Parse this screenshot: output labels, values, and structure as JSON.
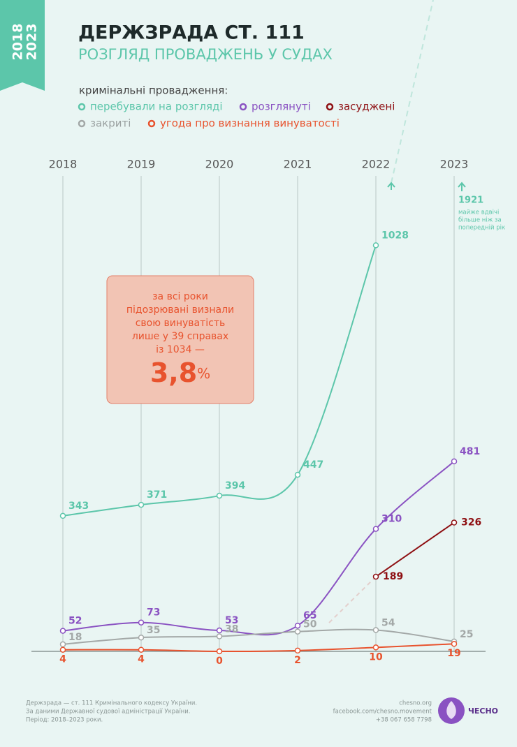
{
  "badge": {
    "years": [
      "2018",
      "2023"
    ]
  },
  "header": {
    "title": "ДЕРЖЗРАДА СТ. 111",
    "subtitle": "РОЗГЛЯД ПРОВАДЖЕНЬ У СУДАХ"
  },
  "legend_heading": "кримінальні провадження:",
  "chart_data": {
    "type": "line",
    "categories": [
      "2018",
      "2019",
      "2020",
      "2021",
      "2022",
      "2023"
    ],
    "series": [
      {
        "name": "перебували на розгляді",
        "color": "#5cc6aa",
        "values": [
          343,
          371,
          394,
          447,
          1028,
          null
        ]
      },
      {
        "name": "розглянуті",
        "color": "#8a52c2",
        "values": [
          52,
          73,
          53,
          65,
          310,
          481
        ]
      },
      {
        "name": "засуджені",
        "color": "#8e0f12",
        "values": [
          null,
          null,
          null,
          null,
          189,
          326
        ]
      },
      {
        "name": "закриті",
        "color": "#a3a8a7",
        "values": [
          18,
          35,
          38,
          50,
          54,
          25
        ]
      },
      {
        "name": "угода про визнання  винуватості",
        "color": "#e8532e",
        "values": [
          4,
          4,
          0,
          2,
          10,
          19
        ]
      }
    ],
    "ylim": [
      0,
      1200
    ],
    "projection": {
      "value": 1921,
      "note": [
        "майже вдвічі",
        "більше ніж за",
        "попередній рік"
      ]
    }
  },
  "callout": {
    "text": [
      "за всі роки",
      "підозрювані визнали",
      "свою винуватість",
      "лише у 39 справах",
      "із 1034 —"
    ],
    "value": "3,8",
    "unit": "%"
  },
  "footer": {
    "left": [
      "Держзрада — ст. 111 Кримінального кодексу України.",
      "За даними Державної судової адміністрації України.",
      "Період: 2018–2023 роки."
    ],
    "right": [
      "chesno.org",
      "facebook.com/chesno.movement",
      "+38 067 658 7798"
    ],
    "logo": "ЧЕСНО"
  }
}
